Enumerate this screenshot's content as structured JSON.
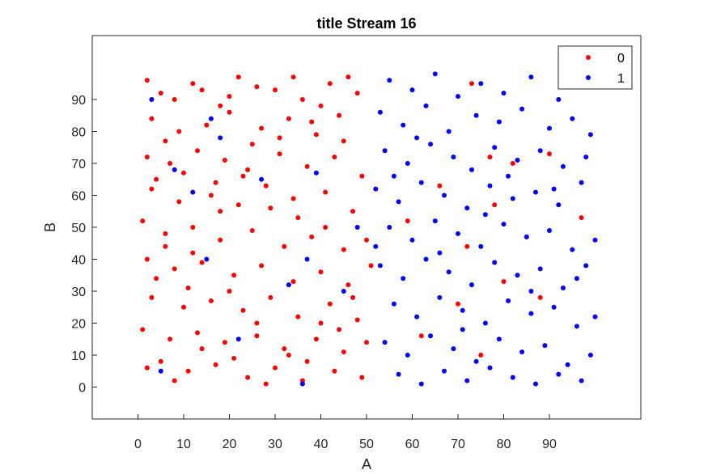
{
  "chart_data": {
    "type": "scatter",
    "title": "title Stream 16",
    "xlabel": "A",
    "ylabel": "B",
    "xlim": [
      -10,
      110
    ],
    "ylim": [
      -10,
      110
    ],
    "xticks": [
      0,
      10,
      20,
      30,
      40,
      50,
      60,
      70,
      80,
      90
    ],
    "yticks": [
      0,
      10,
      20,
      30,
      40,
      50,
      60,
      70,
      80,
      90
    ],
    "grid": false,
    "legend_position": "top-right",
    "series": [
      {
        "name": "0",
        "color": "#ff0000",
        "points": [
          [
            2,
            96
          ],
          [
            5,
            92
          ],
          [
            8,
            90
          ],
          [
            12,
            95
          ],
          [
            18,
            88
          ],
          [
            22,
            97
          ],
          [
            30,
            93
          ],
          [
            36,
            90
          ],
          [
            42,
            95
          ],
          [
            48,
            92
          ],
          [
            3,
            84
          ],
          [
            9,
            80
          ],
          [
            15,
            82
          ],
          [
            20,
            86
          ],
          [
            27,
            81
          ],
          [
            33,
            84
          ],
          [
            39,
            79
          ],
          [
            44,
            85
          ],
          [
            2,
            72
          ],
          [
            7,
            70
          ],
          [
            13,
            74
          ],
          [
            19,
            71
          ],
          [
            24,
            68
          ],
          [
            31,
            73
          ],
          [
            37,
            69
          ],
          [
            43,
            72
          ],
          [
            49,
            66
          ],
          [
            3,
            62
          ],
          [
            9,
            58
          ],
          [
            16,
            60
          ],
          [
            22,
            57
          ],
          [
            28,
            63
          ],
          [
            34,
            59
          ],
          [
            41,
            61
          ],
          [
            47,
            55
          ],
          [
            1,
            52
          ],
          [
            6,
            48
          ],
          [
            12,
            50
          ],
          [
            18,
            46
          ],
          [
            25,
            49
          ],
          [
            32,
            44
          ],
          [
            38,
            47
          ],
          [
            45,
            43
          ],
          [
            50,
            46
          ],
          [
            2,
            40
          ],
          [
            8,
            37
          ],
          [
            14,
            39
          ],
          [
            21,
            35
          ],
          [
            27,
            38
          ],
          [
            34,
            33
          ],
          [
            40,
            36
          ],
          [
            46,
            32
          ],
          [
            51,
            38
          ],
          [
            3,
            28
          ],
          [
            10,
            25
          ],
          [
            16,
            27
          ],
          [
            23,
            24
          ],
          [
            29,
            28
          ],
          [
            35,
            22
          ],
          [
            42,
            26
          ],
          [
            48,
            21
          ],
          [
            1,
            18
          ],
          [
            7,
            15
          ],
          [
            13,
            17
          ],
          [
            19,
            14
          ],
          [
            26,
            16
          ],
          [
            32,
            12
          ],
          [
            39,
            15
          ],
          [
            45,
            11
          ],
          [
            5,
            8
          ],
          [
            11,
            5
          ],
          [
            17,
            7
          ],
          [
            24,
            3
          ],
          [
            30,
            6
          ],
          [
            36,
            2
          ],
          [
            43,
            5
          ],
          [
            49,
            3
          ],
          [
            4,
            65
          ],
          [
            10,
            67
          ],
          [
            17,
            64
          ],
          [
            23,
            66
          ],
          [
            29,
            56
          ],
          [
            35,
            53
          ],
          [
            41,
            50
          ],
          [
            6,
            44
          ],
          [
            12,
            42
          ],
          [
            20,
            30
          ],
          [
            26,
            20
          ],
          [
            33,
            10
          ],
          [
            40,
            20
          ],
          [
            47,
            28
          ],
          [
            2,
            6
          ],
          [
            8,
            2
          ],
          [
            14,
            12
          ],
          [
            21,
            9
          ],
          [
            28,
            1
          ],
          [
            37,
            8
          ],
          [
            44,
            18
          ],
          [
            50,
            14
          ],
          [
            4,
            34
          ],
          [
            11,
            31
          ],
          [
            18,
            55
          ],
          [
            25,
            76
          ],
          [
            31,
            78
          ],
          [
            38,
            83
          ],
          [
            45,
            77
          ],
          [
            6,
            77
          ],
          [
            14,
            93
          ],
          [
            20,
            91
          ],
          [
            26,
            94
          ],
          [
            34,
            97
          ],
          [
            40,
            88
          ],
          [
            46,
            97
          ],
          [
            73,
            95
          ],
          [
            77,
            72
          ],
          [
            82,
            70
          ],
          [
            85,
            47
          ],
          [
            88,
            28
          ],
          [
            62,
            16
          ],
          [
            70,
            26
          ],
          [
            75,
            10
          ],
          [
            80,
            33
          ],
          [
            97,
            53
          ],
          [
            66,
            63
          ],
          [
            59,
            52
          ],
          [
            72,
            44
          ],
          [
            78,
            57
          ],
          [
            90,
            73
          ]
        ]
      },
      {
        "name": "1",
        "color": "#0000ff",
        "points": [
          [
            55,
            96
          ],
          [
            60,
            93
          ],
          [
            65,
            98
          ],
          [
            70,
            91
          ],
          [
            75,
            95
          ],
          [
            80,
            92
          ],
          [
            86,
            97
          ],
          [
            92,
            90
          ],
          [
            97,
            94
          ],
          [
            53,
            86
          ],
          [
            58,
            82
          ],
          [
            63,
            88
          ],
          [
            68,
            80
          ],
          [
            74,
            85
          ],
          [
            79,
            83
          ],
          [
            84,
            87
          ],
          [
            90,
            81
          ],
          [
            95,
            84
          ],
          [
            99,
            79
          ],
          [
            54,
            74
          ],
          [
            59,
            70
          ],
          [
            64,
            76
          ],
          [
            69,
            72
          ],
          [
            73,
            68
          ],
          [
            78,
            75
          ],
          [
            83,
            71
          ],
          [
            88,
            74
          ],
          [
            93,
            69
          ],
          [
            98,
            72
          ],
          [
            52,
            62
          ],
          [
            57,
            58
          ],
          [
            62,
            64
          ],
          [
            67,
            60
          ],
          [
            72,
            56
          ],
          [
            77,
            63
          ],
          [
            82,
            59
          ],
          [
            87,
            61
          ],
          [
            92,
            57
          ],
          [
            97,
            64
          ],
          [
            55,
            50
          ],
          [
            60,
            46
          ],
          [
            65,
            52
          ],
          [
            70,
            48
          ],
          [
            75,
            44
          ],
          [
            80,
            51
          ],
          [
            85,
            47
          ],
          [
            90,
            49
          ],
          [
            95,
            43
          ],
          [
            100,
            46
          ],
          [
            53,
            38
          ],
          [
            58,
            34
          ],
          [
            63,
            40
          ],
          [
            68,
            36
          ],
          [
            73,
            32
          ],
          [
            78,
            39
          ],
          [
            83,
            35
          ],
          [
            88,
            37
          ],
          [
            93,
            31
          ],
          [
            98,
            38
          ],
          [
            56,
            26
          ],
          [
            61,
            22
          ],
          [
            66,
            28
          ],
          [
            71,
            24
          ],
          [
            76,
            20
          ],
          [
            81,
            27
          ],
          [
            86,
            23
          ],
          [
            91,
            25
          ],
          [
            96,
            19
          ],
          [
            54,
            14
          ],
          [
            59,
            10
          ],
          [
            64,
            16
          ],
          [
            69,
            12
          ],
          [
            74,
            8
          ],
          [
            79,
            15
          ],
          [
            84,
            11
          ],
          [
            89,
            13
          ],
          [
            94,
            7
          ],
          [
            99,
            10
          ],
          [
            57,
            4
          ],
          [
            62,
            1
          ],
          [
            67,
            5
          ],
          [
            72,
            2
          ],
          [
            77,
            6
          ],
          [
            82,
            3
          ],
          [
            87,
            1
          ],
          [
            92,
            4
          ],
          [
            97,
            2
          ],
          [
            52,
            44
          ],
          [
            56,
            66
          ],
          [
            61,
            78
          ],
          [
            66,
            42
          ],
          [
            71,
            18
          ],
          [
            76,
            54
          ],
          [
            81,
            66
          ],
          [
            86,
            30
          ],
          [
            91,
            62
          ],
          [
            96,
            34
          ],
          [
            100,
            22
          ],
          [
            3,
            90
          ],
          [
            8,
            68
          ],
          [
            12,
            61
          ],
          [
            16,
            84
          ],
          [
            22,
            15
          ],
          [
            27,
            65
          ],
          [
            33,
            32
          ],
          [
            37,
            40
          ],
          [
            39,
            67
          ],
          [
            45,
            30
          ],
          [
            48,
            50
          ],
          [
            15,
            40
          ],
          [
            5,
            5
          ],
          [
            18,
            78
          ],
          [
            36,
            1
          ]
        ]
      }
    ]
  }
}
